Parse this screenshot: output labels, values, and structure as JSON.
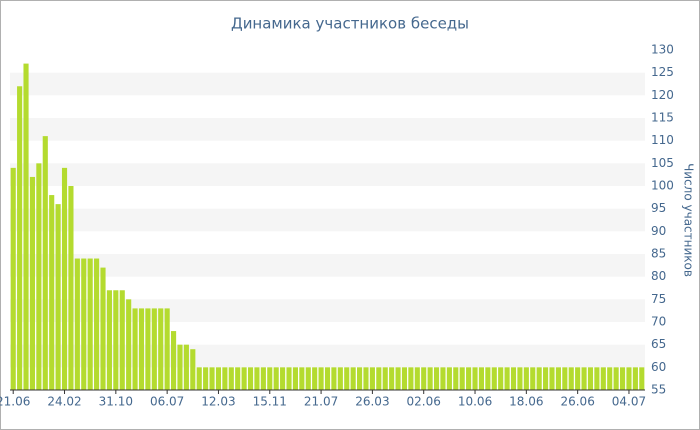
{
  "chart_data": {
    "type": "bar",
    "title": "Динамика участников беседы",
    "y_label": "Число участников",
    "categories": [
      "21.06",
      null,
      null,
      null,
      null,
      null,
      null,
      null,
      "24.02",
      null,
      null,
      null,
      null,
      null,
      null,
      null,
      "31.10",
      null,
      null,
      null,
      null,
      null,
      null,
      null,
      "06.07",
      null,
      null,
      null,
      null,
      null,
      null,
      null,
      "12.03",
      null,
      null,
      null,
      null,
      null,
      null,
      null,
      "15.11",
      null,
      null,
      null,
      null,
      null,
      null,
      null,
      "21.07",
      null,
      null,
      null,
      null,
      null,
      null,
      null,
      "26.03",
      null,
      null,
      null,
      null,
      null,
      null,
      null,
      "02.06",
      null,
      null,
      null,
      null,
      null,
      null,
      null,
      "10.06",
      null,
      null,
      null,
      null,
      null,
      null,
      null,
      "18.06",
      null,
      null,
      null,
      null,
      null,
      null,
      null,
      "26.06",
      null,
      null,
      null,
      null,
      null,
      null,
      null,
      "04.07",
      null,
      null
    ],
    "values": [
      104,
      122,
      127,
      102,
      105,
      111,
      98,
      96,
      104,
      100,
      84,
      84,
      84,
      84,
      82,
      77,
      77,
      77,
      75,
      73,
      73,
      73,
      73,
      73,
      73,
      68,
      65,
      65,
      64,
      60,
      60,
      60,
      60,
      60,
      60,
      60,
      60,
      60,
      60,
      60,
      60,
      60,
      60,
      60,
      60,
      60,
      60,
      60,
      60,
      60,
      60,
      60,
      60,
      60,
      60,
      60,
      60,
      60,
      60,
      60,
      60,
      60,
      60,
      60,
      60,
      60,
      60,
      60,
      60,
      60,
      60,
      60,
      60,
      60,
      60,
      60,
      60,
      60,
      60,
      60,
      60,
      60,
      60,
      60,
      60,
      60,
      60,
      60,
      60,
      60,
      60,
      60,
      60,
      60,
      60,
      60,
      60,
      60,
      60
    ],
    "color": "#b4db2f",
    "ylim": [
      55,
      130
    ],
    "yticks": [
      55,
      60,
      65,
      70,
      75,
      80,
      85,
      90,
      95,
      100,
      105,
      110,
      115,
      120,
      125,
      130
    ],
    "grid": true,
    "y_axis_side": "right"
  }
}
